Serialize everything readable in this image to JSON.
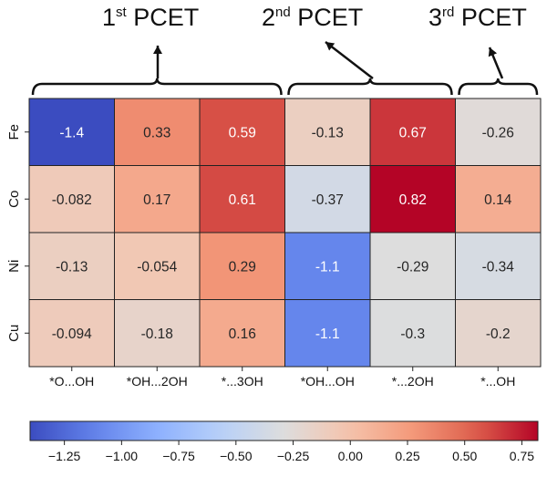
{
  "headers": [
    {
      "pre": "1",
      "sup": "st",
      "post": " PCET"
    },
    {
      "pre": "2",
      "sup": "nd",
      "post": " PCET"
    },
    {
      "pre": "3",
      "sup": "rd",
      "post": " PCET"
    }
  ],
  "chart_data": {
    "type": "heatmap",
    "rows": [
      "Fe",
      "Co",
      "Ni",
      "Cu"
    ],
    "columns": [
      "*O...OH",
      "*OH...2OH",
      "*...3OH",
      "*OH...OH",
      "*...2OH",
      "*...OH"
    ],
    "values": [
      [
        -1.4,
        0.33,
        0.59,
        -0.13,
        0.67,
        -0.26
      ],
      [
        -0.082,
        0.17,
        0.61,
        -0.37,
        0.82,
        0.14
      ],
      [
        -0.13,
        -0.054,
        0.29,
        -1.1,
        -0.29,
        -0.34
      ],
      [
        -0.094,
        -0.18,
        0.16,
        -1.1,
        -0.3,
        -0.2
      ]
    ],
    "value_labels": [
      [
        "-1.4",
        "0.33",
        "0.59",
        "-0.13",
        "0.67",
        "-0.26"
      ],
      [
        "-0.082",
        "0.17",
        "0.61",
        "-0.37",
        "0.82",
        "0.14"
      ],
      [
        "-0.13",
        "-0.054",
        "0.29",
        "-1.1",
        "-0.29",
        "-0.34"
      ],
      [
        "-0.094",
        "-0.18",
        "0.16",
        "-1.1",
        "-0.3",
        "-0.2"
      ]
    ],
    "colormap": "coolwarm",
    "vmin": -1.4,
    "vmax": 0.82,
    "colorbar": {
      "orientation": "horizontal",
      "position": "bottom",
      "ticks": [
        -1.25,
        -1.0,
        -0.75,
        -0.5,
        -0.25,
        0.0,
        0.25,
        0.5,
        0.75
      ],
      "tick_labels": [
        "−1.25",
        "−1.00",
        "−0.75",
        "−0.50",
        "−0.25",
        "0.00",
        "0.25",
        "0.50",
        "0.75"
      ]
    },
    "groups": [
      {
        "header_index": 0,
        "columns": [
          0,
          1,
          2
        ]
      },
      {
        "header_index": 1,
        "columns": [
          3,
          4
        ]
      },
      {
        "header_index": 2,
        "columns": [
          5
        ]
      }
    ]
  }
}
